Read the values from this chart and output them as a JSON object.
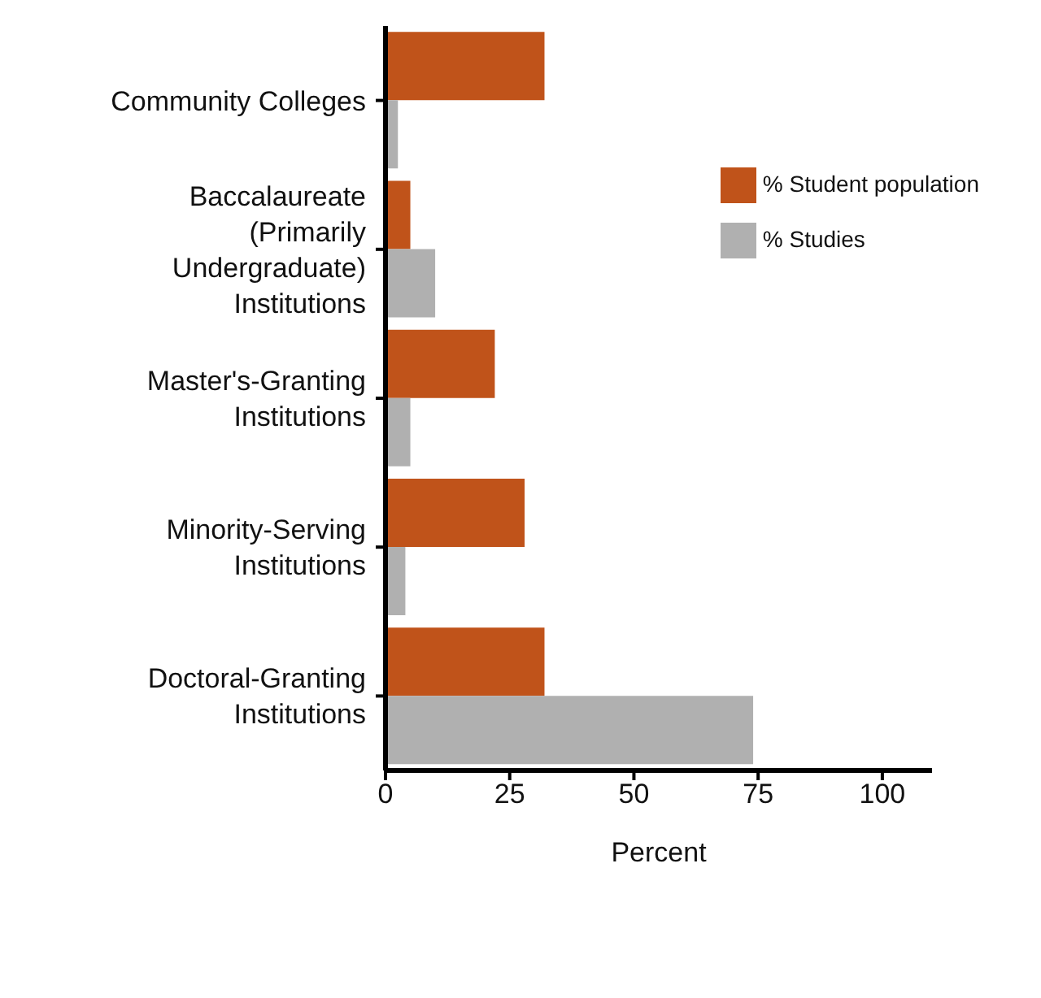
{
  "chart_data": {
    "type": "bar",
    "orientation": "horizontal",
    "xlabel": "Percent",
    "categories": [
      "Community Colleges",
      "Baccalaureate (Primarily Undergraduate) Institutions",
      "Master's-Granting Institutions",
      "Minority-Serving Institutions",
      "Doctoral-Granting Institutions"
    ],
    "series": [
      {
        "name": "% Student population",
        "color": "#c0531a",
        "values": [
          32,
          5,
          22,
          28,
          32
        ]
      },
      {
        "name": "% Studies",
        "color": "#b0b0b0",
        "values": [
          2.5,
          10,
          5,
          4,
          74
        ]
      }
    ],
    "xlim": [
      0,
      110
    ],
    "xticks": [
      0,
      25,
      50,
      75,
      100
    ],
    "grid": false,
    "legend": "top right"
  }
}
